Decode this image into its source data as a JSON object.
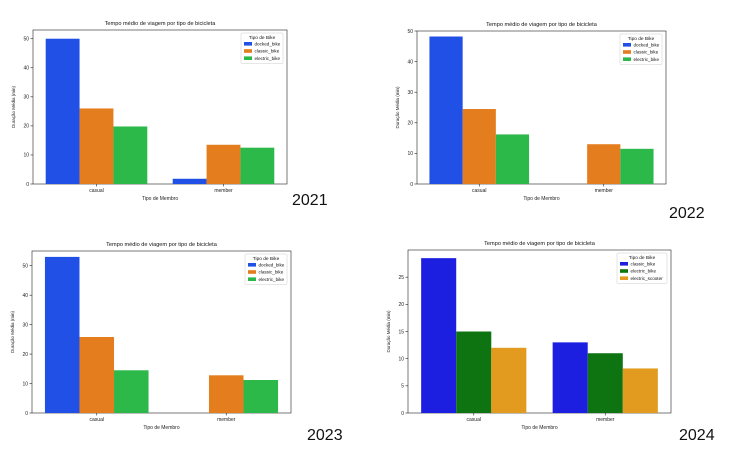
{
  "panels": [
    {
      "year_label": "2021",
      "chart_data": {
        "type": "bar",
        "title": "Tempo médio de viagem por tipo de bicicleta",
        "xlabel": "Tipo de Membro",
        "ylabel": "Duração Média (min)",
        "categories": [
          "casual",
          "member"
        ],
        "ylim": [
          0,
          53
        ],
        "yticks": [
          0,
          10,
          20,
          30,
          40,
          50
        ],
        "legend_title": "Tipo de Bike",
        "legend_position": "top-right",
        "grid": false,
        "series": [
          {
            "name": "docked_bike",
            "color": "#2150e6",
            "values": [
              50.0,
              1.8
            ]
          },
          {
            "name": "classic_bike",
            "color": "#e47d1e",
            "values": [
              26.0,
              13.5
            ]
          },
          {
            "name": "electric_bike",
            "color": "#2db84a",
            "values": [
              19.8,
              12.5
            ]
          }
        ]
      }
    },
    {
      "year_label": "2022",
      "chart_data": {
        "type": "bar",
        "title": "Tempo médio de viagem por tipo de bicicleta",
        "xlabel": "Tipo de Membro",
        "ylabel": "Duração Média (min)",
        "categories": [
          "casual",
          "member"
        ],
        "ylim": [
          0,
          50
        ],
        "yticks": [
          0,
          10,
          20,
          30,
          40,
          50
        ],
        "legend_title": "Tipo de Bike",
        "legend_position": "top-right",
        "grid": false,
        "series": [
          {
            "name": "docked_bike",
            "color": "#2150e6",
            "values": [
              48.2,
              null
            ]
          },
          {
            "name": "classic_bike",
            "color": "#e47d1e",
            "values": [
              24.5,
              13.0
            ]
          },
          {
            "name": "electric_bike",
            "color": "#2db84a",
            "values": [
              16.2,
              11.5
            ]
          }
        ]
      }
    },
    {
      "year_label": "2023",
      "chart_data": {
        "type": "bar",
        "title": "Tempo médio de viagem por tipo de bicicleta",
        "xlabel": "Tipo de Membro",
        "ylabel": "Duração Média (min)",
        "categories": [
          "casual",
          "member"
        ],
        "ylim": [
          0,
          55
        ],
        "yticks": [
          0,
          10,
          20,
          30,
          40,
          50
        ],
        "legend_title": "Tipo de Bike",
        "legend_position": "top-right",
        "grid": false,
        "series": [
          {
            "name": "docked_bike",
            "color": "#2150e6",
            "values": [
              53.0,
              null
            ]
          },
          {
            "name": "classic_bike",
            "color": "#e47d1e",
            "values": [
              25.8,
              12.8
            ]
          },
          {
            "name": "electric_bike",
            "color": "#2db84a",
            "values": [
              14.5,
              11.2
            ]
          }
        ]
      }
    },
    {
      "year_label": "2024",
      "chart_data": {
        "type": "bar",
        "title": "Tempo médio de viagem por tipo de bicicleta",
        "xlabel": "Tipo de Membro",
        "ylabel": "Duração Média (min)",
        "categories": [
          "casual",
          "member"
        ],
        "ylim": [
          0,
          30
        ],
        "yticks": [
          0,
          5,
          10,
          15,
          20,
          25
        ],
        "legend_title": "Tipo de Bike",
        "legend_position": "top-right",
        "grid": false,
        "series": [
          {
            "name": "classic_bike",
            "color": "#1c1ee0",
            "values": [
              28.5,
              13.0
            ]
          },
          {
            "name": "electric_bike",
            "color": "#0e7412",
            "values": [
              15.0,
              11.0
            ]
          },
          {
            "name": "electric_scooter",
            "color": "#e29b1e",
            "values": [
              12.0,
              8.2
            ]
          }
        ]
      }
    }
  ]
}
